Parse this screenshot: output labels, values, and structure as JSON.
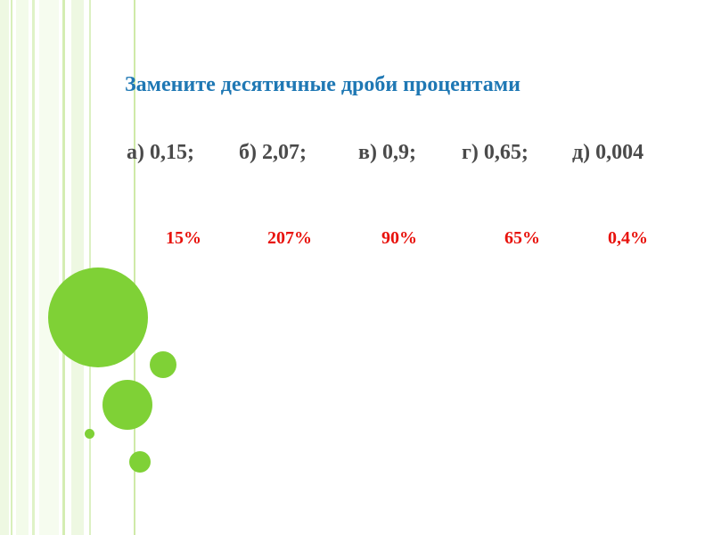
{
  "slide": {
    "title": "Замените десятичные дроби процентами",
    "problems": [
      "а) 0,15;",
      "б) 2,07;",
      "в) 0,9;",
      "г) 0,65;",
      "д) 0,004"
    ],
    "answers": [
      "15%",
      "207%",
      "90%",
      "65%",
      "0,4%"
    ]
  },
  "colors": {
    "title": "#1f78b4",
    "problem_text": "#4a4a4a",
    "answer_text": "#e8120c",
    "circle_green": "#7fd136",
    "stripe_light": "#eaf6dc",
    "stripe_line": "#cfeaa8"
  }
}
